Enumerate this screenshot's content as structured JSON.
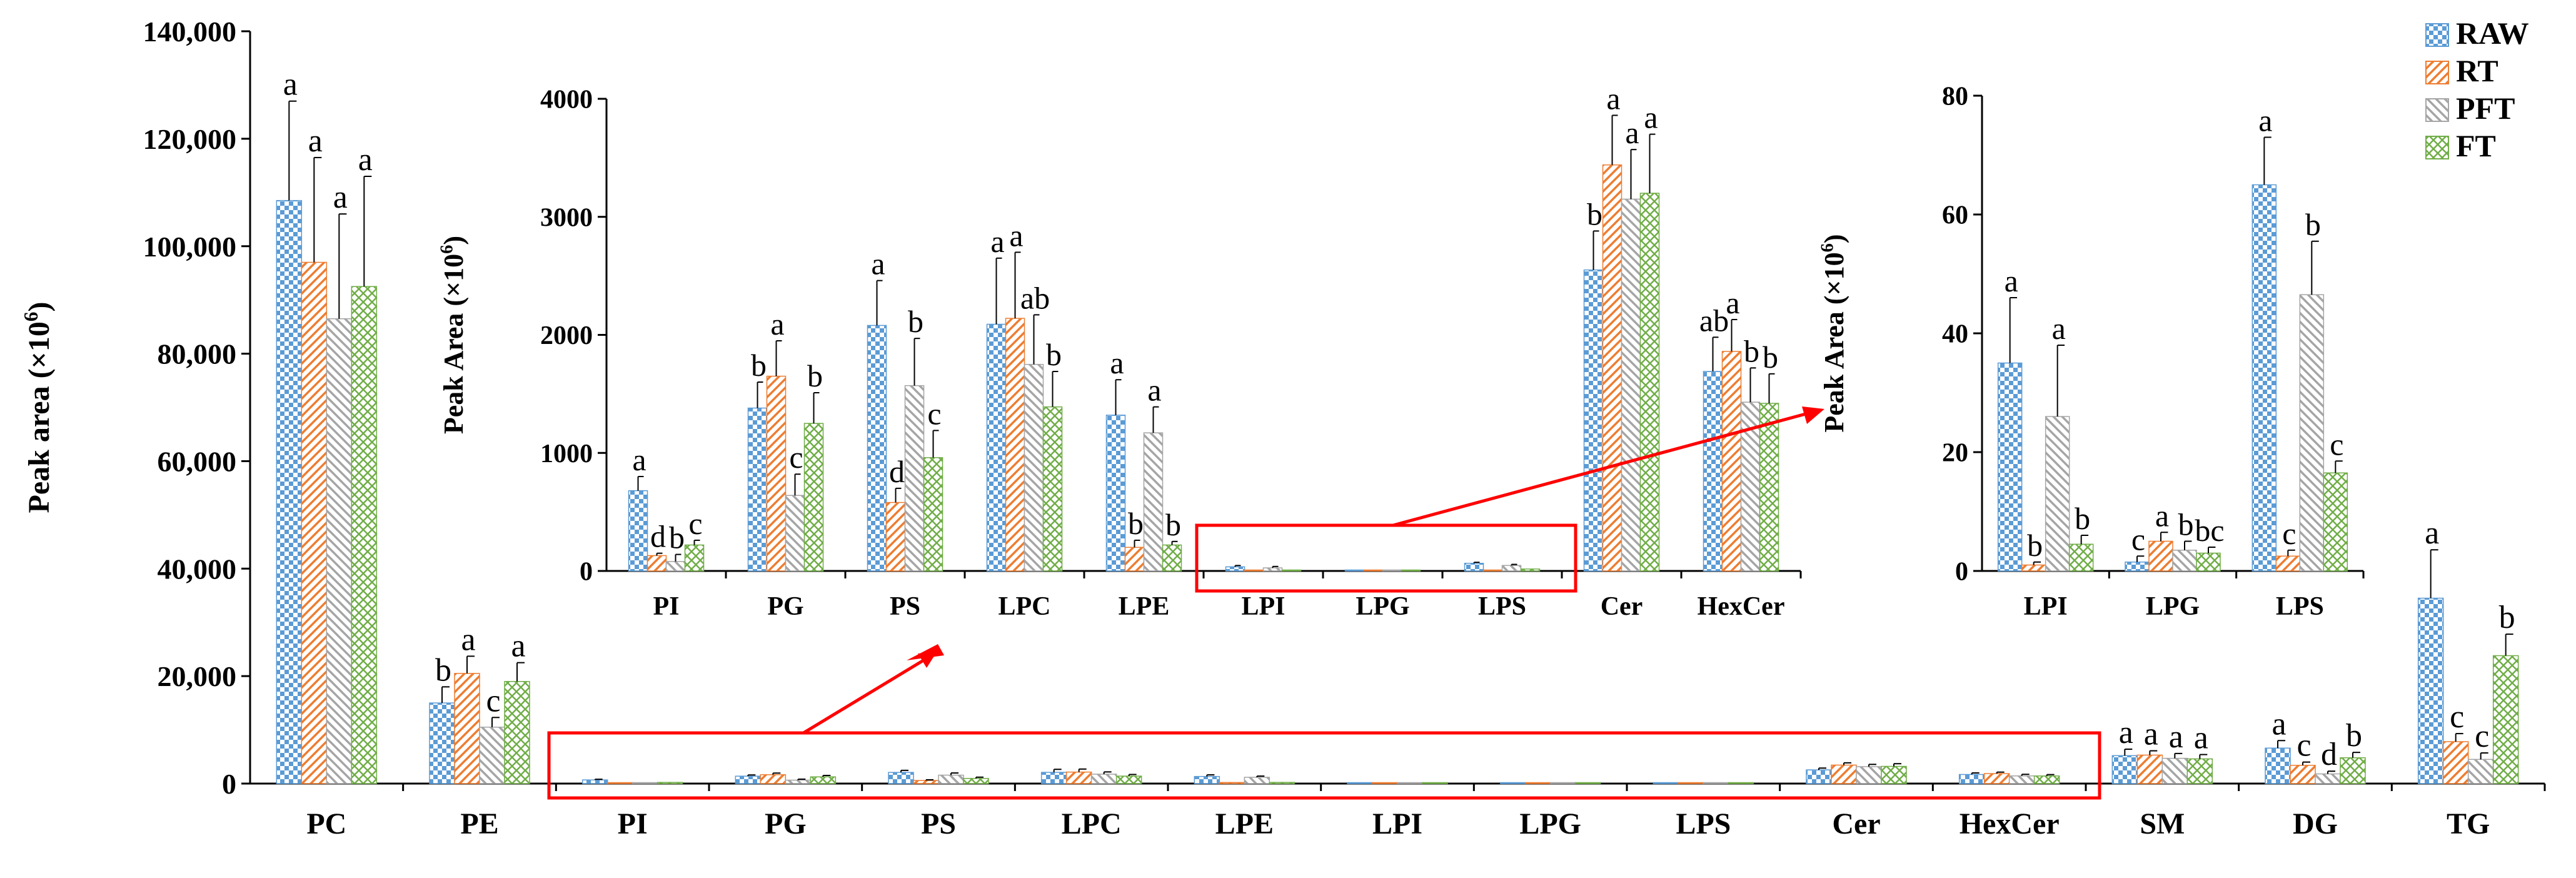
{
  "colors": {
    "RAW": "#5b9bd5",
    "RT": "#ed7d31",
    "PFT": "#a5a5a5",
    "FT": "#70ad47",
    "highlight": "#ff0000"
  },
  "chart_data": [
    {
      "id": "main",
      "type": "bar",
      "ylabel": "Peak area (×10",
      "ylabel_sup": "6",
      "ylim": [
        0,
        140000
      ],
      "yticks": [
        0,
        20000,
        40000,
        60000,
        80000,
        100000,
        120000,
        140000
      ],
      "ytick_labels": [
        "0",
        "20,000",
        "40,000",
        "60,000",
        "80,000",
        "100,000",
        "120,000",
        "140,000"
      ],
      "categories": [
        "PC",
        "PE",
        "PI",
        "PG",
        "PS",
        "LPC",
        "LPE",
        "LPI",
        "LPG",
        "LPS",
        "Cer",
        "HexCer",
        "SM",
        "DG",
        "TG"
      ],
      "series": [
        {
          "name": "RAW",
          "values": [
            108500,
            15000,
            680,
            1380,
            2080,
            2090,
            1320,
            35,
            1.5,
            65,
            2550,
            1690,
            5200,
            6600,
            34500
          ],
          "errors": [
            18500,
            3000,
            120,
            220,
            380,
            560,
            300,
            11,
            1,
            8,
            330,
            290,
            1200,
            1400,
            9000
          ]
        },
        {
          "name": "RT",
          "values": [
            97000,
            20500,
            130,
            1650,
            580,
            2140,
            200,
            1,
            5,
            2.5,
            3440,
            1860,
            5300,
            3400,
            7800
          ],
          "errors": [
            19500,
            3200,
            20,
            300,
            120,
            560,
            60,
            0.5,
            1.5,
            1,
            420,
            270,
            800,
            600,
            1500
          ]
        },
        {
          "name": "PFT",
          "values": [
            86500,
            10500,
            80,
            640,
            1570,
            1750,
            1170,
            26,
            3.5,
            46.5,
            3150,
            1430,
            4700,
            1800,
            4500
          ],
          "errors": [
            19500,
            1800,
            60,
            180,
            400,
            420,
            220,
            12,
            1.5,
            9,
            420,
            290,
            900,
            500,
            1200
          ]
        },
        {
          "name": "FT",
          "values": [
            92500,
            19000,
            220,
            1250,
            960,
            1390,
            220,
            4.5,
            3,
            16.5,
            3200,
            1420,
            4600,
            4800,
            23800
          ],
          "errors": [
            20500,
            3500,
            40,
            260,
            230,
            300,
            30,
            1.5,
            1,
            2,
            500,
            250,
            800,
            1000,
            4000
          ]
        }
      ],
      "letters": {
        "PC": [
          "a",
          "a",
          "a",
          "a"
        ],
        "PE": [
          "b",
          "a",
          "c",
          "a"
        ],
        "SM": [
          "a",
          "a",
          "a",
          "a"
        ],
        "DG": [
          "a",
          "c",
          "d",
          "b"
        ],
        "TG": [
          "a",
          "c",
          "c",
          "b"
        ]
      }
    },
    {
      "id": "inset1",
      "type": "bar",
      "ylabel": "Peak Area (×10",
      "ylabel_sup": "6",
      "ylim": [
        0,
        4000
      ],
      "yticks": [
        0,
        1000,
        2000,
        3000,
        4000
      ],
      "ytick_labels": [
        "0",
        "1000",
        "2000",
        "3000",
        "4000"
      ],
      "categories": [
        "PI",
        "PG",
        "PS",
        "LPC",
        "LPE",
        "LPI",
        "LPG",
        "LPS",
        "Cer",
        "HexCer"
      ],
      "letters": {
        "PI": [
          "a",
          "d",
          "b",
          "c"
        ],
        "PG": [
          "b",
          "a",
          "c",
          "b"
        ],
        "PS": [
          "a",
          "d",
          "b",
          "c"
        ],
        "LPC": [
          "a",
          "a",
          "ab",
          "b"
        ],
        "LPE": [
          "a",
          "b",
          "a",
          "b"
        ],
        "Cer": [
          "b",
          "a",
          "a",
          "a"
        ],
        "HexCer": [
          "ab",
          "a",
          "b",
          "b"
        ]
      }
    },
    {
      "id": "inset2",
      "type": "bar",
      "ylabel": "Peak Area (×10",
      "ylabel_sup": "6",
      "ylim": [
        0,
        80
      ],
      "yticks": [
        0,
        20,
        40,
        60,
        80
      ],
      "ytick_labels": [
        "0",
        "20",
        "40",
        "60",
        "80"
      ],
      "categories": [
        "LPI",
        "LPG",
        "LPS"
      ],
      "letters": {
        "LPI": [
          "a",
          "b",
          "a",
          "b"
        ],
        "LPG": [
          "c",
          "a",
          "b",
          "bc"
        ],
        "LPS": [
          "a",
          "c",
          "b",
          "c"
        ]
      }
    }
  ],
  "legend": [
    "RAW",
    "RT",
    "PFT",
    "FT"
  ]
}
